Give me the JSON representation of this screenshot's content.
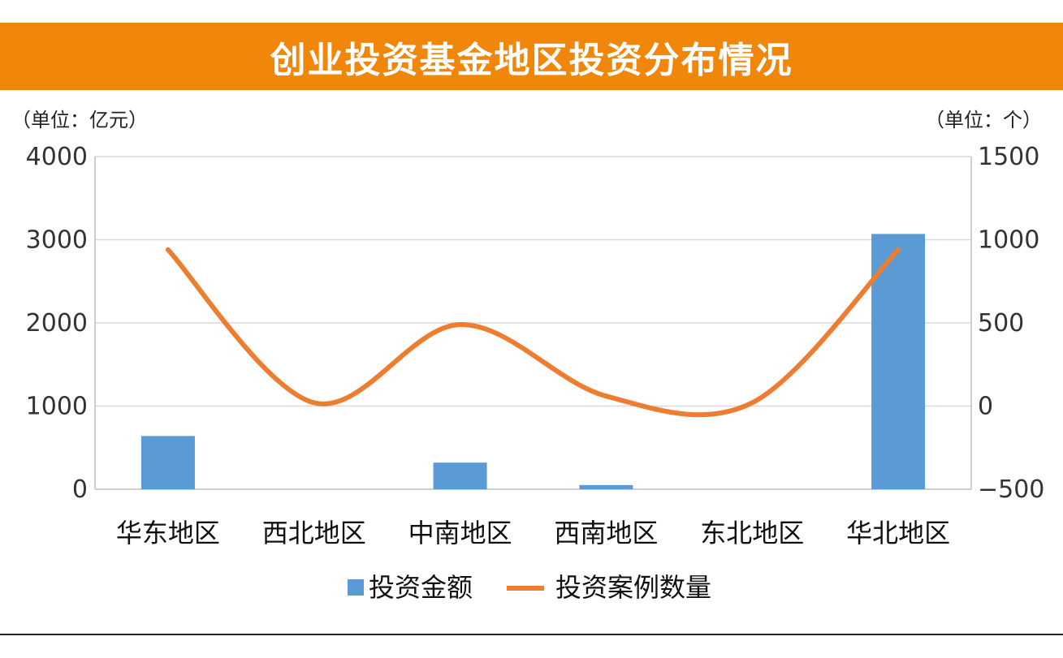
{
  "chart_data": {
    "type": "bar",
    "title": "创业投资基金地区投资分布情况",
    "left_unit": "（单位：亿元）",
    "right_unit": "（单位：个）",
    "categories": [
      "华东地区",
      "西北地区",
      "中南地区",
      "西南地区",
      "东北地区",
      "华北地区"
    ],
    "left_axis": {
      "ylim": [
        0,
        4000
      ],
      "ticks": [
        "0",
        "1000",
        "2000",
        "3000",
        "4000"
      ],
      "tick_values": [
        0,
        1000,
        2000,
        3000,
        4000
      ]
    },
    "right_axis": {
      "ylim": [
        -500,
        1500
      ],
      "ticks": [
        "−500",
        "0",
        "500",
        "1000",
        "1500"
      ],
      "tick_values": [
        -500,
        0,
        500,
        1000,
        1500
      ]
    },
    "grid": true,
    "legend_position": "bottom",
    "series": [
      {
        "name": "投资金额",
        "type": "bar",
        "axis": "left",
        "color": "#5B9BD5",
        "values": [
          640,
          0,
          320,
          50,
          0,
          3070
        ]
      },
      {
        "name": "投资案例数量",
        "type": "line",
        "axis": "right",
        "smooth": true,
        "color": "#ED7D31",
        "values": [
          940,
          20,
          490,
          60,
          20,
          940
        ]
      }
    ]
  }
}
